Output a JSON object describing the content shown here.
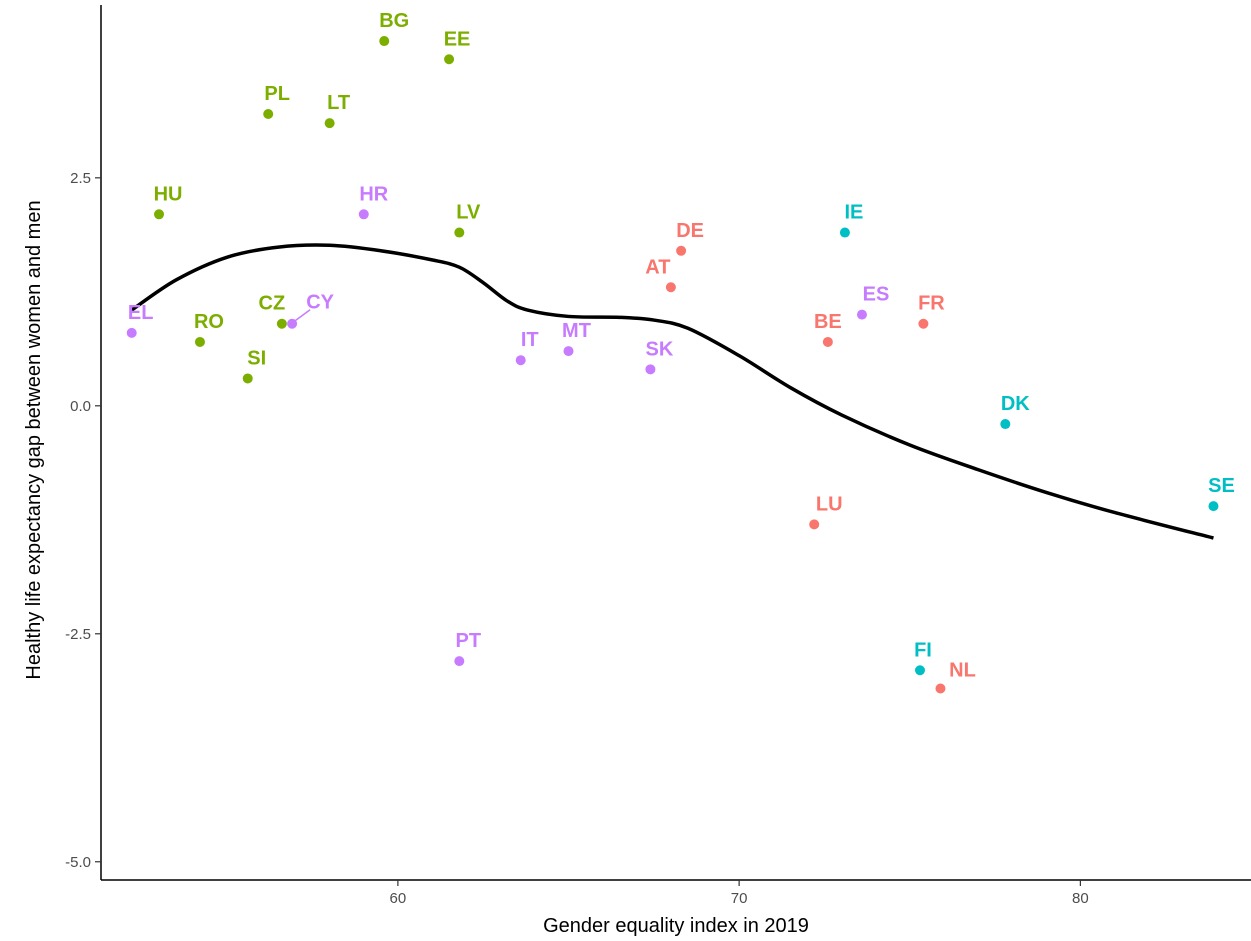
{
  "chart_data": {
    "type": "scatter",
    "title": "",
    "xlabel": "Gender equality index in 2019",
    "ylabel": "Healthy life expectancy gap between women and men",
    "xlim": [
      51.3,
      85.0
    ],
    "ylim": [
      -5.2,
      4.45
    ],
    "xticks": [
      60,
      70,
      80
    ],
    "yticks": [
      -5.0,
      -2.5,
      0.0,
      2.5
    ],
    "xtick_labels": [
      "60",
      "70",
      "80"
    ],
    "ytick_labels": [
      "-5.0",
      "-2.5",
      "0.0",
      "2.5"
    ],
    "grid": false,
    "legend": "none",
    "colors": {
      "green": "#7CAE00",
      "purple": "#C77CFF",
      "red": "#F8766D",
      "teal": "#00BFC4",
      "smooth": "#000000"
    },
    "points": [
      {
        "label": "BG",
        "x": 59.6,
        "y": 4.0,
        "group": "green"
      },
      {
        "label": "EE",
        "x": 61.5,
        "y": 3.8,
        "group": "green"
      },
      {
        "label": "PL",
        "x": 56.2,
        "y": 3.2,
        "group": "green"
      },
      {
        "label": "LT",
        "x": 58.0,
        "y": 3.1,
        "group": "green"
      },
      {
        "label": "HU",
        "x": 53.0,
        "y": 2.1,
        "group": "green"
      },
      {
        "label": "LV",
        "x": 61.8,
        "y": 1.9,
        "group": "green"
      },
      {
        "label": "CZ",
        "x": 56.6,
        "y": 0.9,
        "group": "green"
      },
      {
        "label": "RO",
        "x": 54.2,
        "y": 0.7,
        "group": "green"
      },
      {
        "label": "SI",
        "x": 55.6,
        "y": 0.3,
        "group": "green"
      },
      {
        "label": "HR",
        "x": 59.0,
        "y": 2.1,
        "group": "purple"
      },
      {
        "label": "CY",
        "x": 56.9,
        "y": 0.9,
        "group": "purple"
      },
      {
        "label": "EL",
        "x": 52.2,
        "y": 0.8,
        "group": "purple"
      },
      {
        "label": "IT",
        "x": 63.6,
        "y": 0.5,
        "group": "purple"
      },
      {
        "label": "MT",
        "x": 65.0,
        "y": 0.6,
        "group": "purple"
      },
      {
        "label": "SK",
        "x": 67.4,
        "y": 0.4,
        "group": "purple"
      },
      {
        "label": "ES",
        "x": 73.6,
        "y": 1.0,
        "group": "purple"
      },
      {
        "label": "PT",
        "x": 61.8,
        "y": -2.8,
        "group": "purple"
      },
      {
        "label": "DE",
        "x": 68.3,
        "y": 1.7,
        "group": "red"
      },
      {
        "label": "AT",
        "x": 68.0,
        "y": 1.3,
        "group": "red"
      },
      {
        "label": "BE",
        "x": 72.6,
        "y": 0.7,
        "group": "red"
      },
      {
        "label": "FR",
        "x": 75.4,
        "y": 0.9,
        "group": "red"
      },
      {
        "label": "LU",
        "x": 72.2,
        "y": -1.3,
        "group": "red"
      },
      {
        "label": "NL",
        "x": 75.9,
        "y": -3.1,
        "group": "red"
      },
      {
        "label": "IE",
        "x": 73.1,
        "y": 1.9,
        "group": "teal"
      },
      {
        "label": "DK",
        "x": 77.8,
        "y": -0.2,
        "group": "teal"
      },
      {
        "label": "SE",
        "x": 83.9,
        "y": -1.1,
        "group": "teal"
      },
      {
        "label": "FI",
        "x": 75.3,
        "y": -2.9,
        "group": "teal"
      }
    ],
    "smooth": {
      "type": "loess",
      "x": [
        52.2,
        53.5,
        55.0,
        56.5,
        58.0,
        59.5,
        61.0,
        61.8,
        62.5,
        63.2,
        63.8,
        65.0,
        66.5,
        67.5,
        68.5,
        70.0,
        71.5,
        73.0,
        75.0,
        77.0,
        79.0,
        81.0,
        83.9
      ],
      "y": [
        1.05,
        1.38,
        1.63,
        1.74,
        1.76,
        1.7,
        1.6,
        1.52,
        1.35,
        1.15,
        1.05,
        0.98,
        0.97,
        0.94,
        0.85,
        0.55,
        0.2,
        -0.1,
        -0.43,
        -0.7,
        -0.95,
        -1.17,
        -1.45
      ]
    }
  }
}
